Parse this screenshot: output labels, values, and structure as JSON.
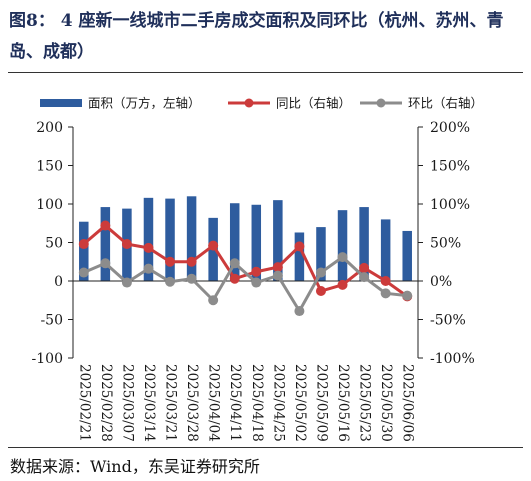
{
  "figure": {
    "title": "图8： 4 座新一线城市二手房成交面积及同环比（杭州、苏州、青岛、成都）",
    "source": "数据来源：Wind，东吴证券研究所"
  },
  "chart_data": {
    "type": "bar",
    "categories": [
      "2025/02/21",
      "2025/02/28",
      "2025/03/07",
      "2025/03/14",
      "2025/03/21",
      "2025/03/28",
      "2025/04/04",
      "2025/04/11",
      "2025/04/18",
      "2025/04/25",
      "2025/05/02",
      "2025/05/09",
      "2025/05/16",
      "2025/05/23",
      "2025/05/30",
      "2025/06/06"
    ],
    "left_axis": {
      "ylim": [
        -100,
        200
      ],
      "ticks": [
        -100,
        -50,
        0,
        50,
        100,
        150,
        200
      ]
    },
    "right_axis": {
      "ylim": [
        -100,
        200
      ],
      "ticks": [
        -100,
        -50,
        0,
        50,
        100,
        150,
        200
      ],
      "tick_labels": [
        "-100%",
        "-50%",
        "0%",
        "50%",
        "100%",
        "150%",
        "200%"
      ]
    },
    "series": [
      {
        "name": "面积（万方，左轴）",
        "type": "bar",
        "axis": "left",
        "color": "#2e5c9e",
        "values": [
          77,
          96,
          94,
          108,
          107,
          110,
          82,
          101,
          99,
          105,
          63,
          70,
          92,
          96,
          80,
          65
        ]
      },
      {
        "name": "同比（右轴）",
        "type": "line",
        "axis": "right",
        "color": "#cc3b3b",
        "values": [
          48,
          72,
          48,
          43,
          25,
          25,
          46,
          3,
          12,
          18,
          45,
          -13,
          -5,
          17,
          0,
          -20
        ]
      },
      {
        "name": "环比（右轴）",
        "type": "line",
        "axis": "right",
        "color": "#8c8c8c",
        "values": [
          11,
          23,
          -2,
          16,
          -1,
          3,
          -25,
          23,
          -2,
          7,
          -39,
          11,
          31,
          5,
          -16,
          -19
        ]
      }
    ],
    "legend_position": "top",
    "grid": false
  }
}
